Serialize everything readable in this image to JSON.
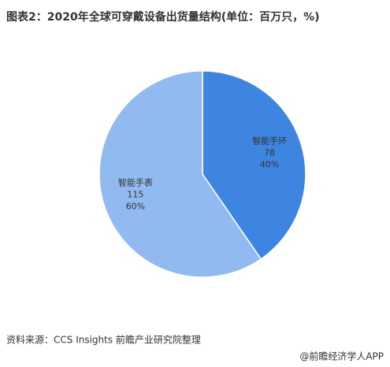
{
  "chart_data": {
    "type": "pie",
    "title": "图表2：2020年全球可穿戴设备出货量结构(单位：百万只，%)",
    "categories": [
      "智能手环",
      "智能手表"
    ],
    "values": [
      78,
      115
    ],
    "percent_labels": [
      "40%",
      "60%"
    ],
    "colors": [
      "#3d85e0",
      "#91baf0"
    ],
    "source": "资料来源：CCS Insights 前瞻产业研究院整理",
    "footer": "@前瞻经济学人APP"
  }
}
